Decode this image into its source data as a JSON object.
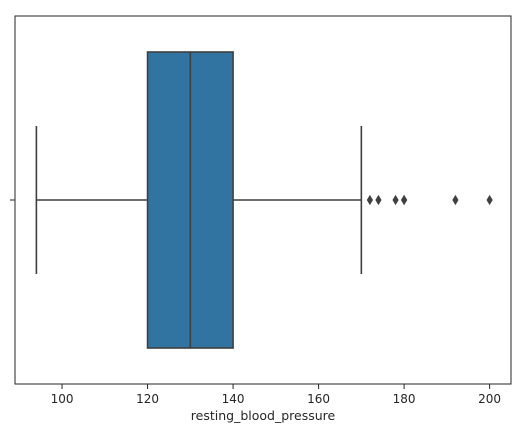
{
  "chart_data": {
    "type": "box",
    "orientation": "horizontal",
    "title": "",
    "xlabel": "resting_blood_pressure",
    "ylabel": "",
    "xlim": [
      89,
      205
    ],
    "x_ticks": [
      100,
      120,
      140,
      160,
      180,
      200
    ],
    "y_ticks": [
      ""
    ],
    "grid": false,
    "series": [
      {
        "whisker_low": 94,
        "q1": 120,
        "median": 130,
        "q3": 140,
        "whisker_high": 170,
        "outliers": [
          172,
          174,
          178,
          180,
          180,
          192,
          200
        ]
      }
    ],
    "colors": {
      "box_fill": "#3274a1",
      "line": "#3f3f3f",
      "axis": "#262626"
    }
  }
}
